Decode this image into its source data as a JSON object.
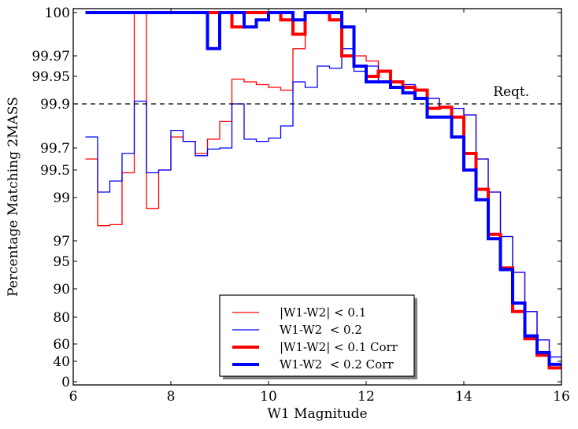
{
  "chart_data": {
    "type": "line",
    "step": true,
    "xlabel": "W1 Magnitude",
    "ylabel": "Percentage Matching 2MASS",
    "xlim": [
      6,
      16
    ],
    "x_ticks": [
      "6",
      "8",
      "10",
      "12",
      "14",
      "16"
    ],
    "y_ticks": [
      "0",
      "40",
      "60",
      "80",
      "90",
      "95",
      "97",
      "99",
      "99.5",
      "99.7",
      "99.9",
      "99.95",
      "99.97",
      "100"
    ],
    "requirement": {
      "value": 99.9,
      "label": "Reqt."
    },
    "legend_position": "lower-center",
    "bin_edges": [
      6.25,
      6.5,
      6.75,
      7.0,
      7.25,
      7.5,
      7.75,
      8.0,
      8.25,
      8.5,
      8.75,
      9.0,
      9.25,
      9.5,
      9.75,
      10.0,
      10.25,
      10.5,
      10.75,
      11.0,
      11.25,
      11.5,
      11.75,
      12.0,
      12.25,
      12.5,
      12.75,
      13.0,
      13.25,
      13.5,
      13.75,
      14.0,
      14.25,
      14.5,
      14.75,
      15.0,
      15.25,
      15.5,
      15.75,
      16.0
    ],
    "series": [
      {
        "name": "|W1-W2| < 0.1",
        "color": "#ff0000",
        "width": 1.3,
        "values": [
          99.6,
          97.7,
          97.75,
          99.45,
          100,
          98.5,
          99.5,
          99.75,
          99.73,
          99.65,
          99.74,
          99.82,
          99.945,
          99.94,
          99.935,
          99.93,
          99.925,
          99.975,
          100,
          100,
          100,
          99.99,
          99.97,
          99.965,
          99.94,
          99.94,
          99.935,
          99.925,
          99.91,
          99.885,
          99.88,
          99.85,
          99.6,
          99.1,
          97.2,
          93,
          82,
          63,
          45
        ]
      },
      {
        "name": "W1-W2  < 0.2",
        "color": "#0000ff",
        "width": 1.3,
        "values": [
          99.75,
          99.1,
          99.3,
          99.65,
          99.905,
          99.45,
          99.5,
          99.78,
          99.73,
          99.63,
          99.69,
          99.7,
          99.9,
          99.74,
          99.73,
          99.745,
          99.8,
          99.94,
          99.93,
          99.96,
          99.958,
          99.975,
          99.955,
          99.96,
          99.94,
          99.94,
          99.935,
          99.925,
          99.91,
          99.885,
          99.88,
          99.85,
          99.6,
          99.1,
          97.2,
          93,
          82,
          63,
          45
        ]
      },
      {
        "name": "|W1-W2| < 0.1 Corr",
        "color": "#ff0000",
        "width": 4,
        "values": [
          100,
          100,
          100,
          100,
          100,
          100,
          100,
          100,
          100,
          100,
          100,
          100,
          99.99,
          100,
          100,
          100,
          99.995,
          99.985,
          100,
          100,
          99.995,
          99.97,
          99.96,
          99.95,
          99.955,
          99.94,
          99.93,
          99.925,
          99.88,
          99.885,
          99.84,
          99.65,
          99.15,
          97.3,
          93.8,
          82,
          64,
          47,
          27
        ]
      },
      {
        "name": "W1-W2  < 0.2 Corr",
        "color": "#0000ff",
        "width": 4,
        "values": [
          100,
          100,
          100,
          100,
          100,
          100,
          100,
          100,
          100,
          100,
          99.975,
          100,
          100,
          99.99,
          99.995,
          100,
          100,
          99.995,
          100,
          100,
          100,
          99.99,
          99.96,
          99.94,
          99.94,
          99.93,
          99.92,
          99.91,
          99.84,
          99.84,
          99.75,
          99.5,
          98.9,
          97.1,
          93.5,
          85,
          66,
          50,
          34
        ]
      }
    ]
  }
}
